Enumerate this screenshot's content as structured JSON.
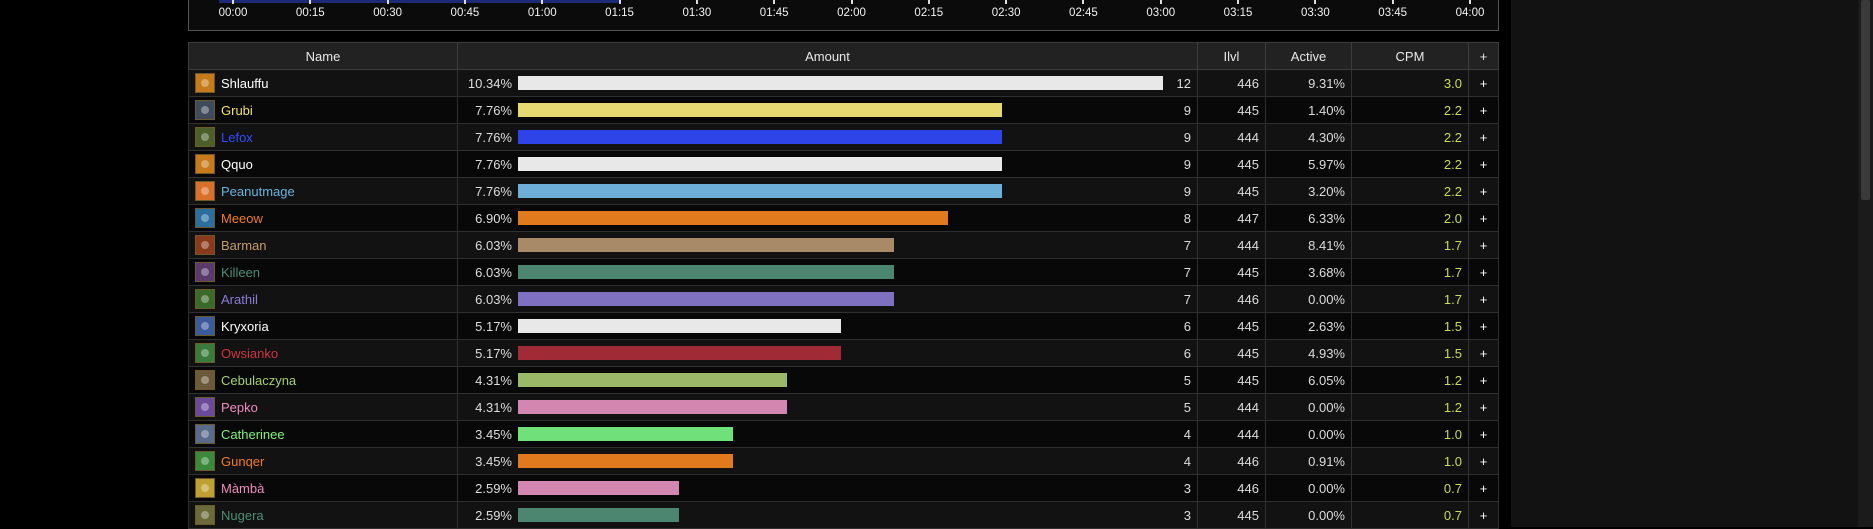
{
  "timeline": {
    "ticks": [
      "00:00",
      "00:15",
      "00:30",
      "00:45",
      "01:00",
      "01:15",
      "01:30",
      "01:45",
      "02:00",
      "02:15",
      "02:30",
      "02:45",
      "03:00",
      "03:15",
      "03:30",
      "03:45",
      "04:00"
    ]
  },
  "table": {
    "headers": {
      "name": "Name",
      "amount": "Amount",
      "ilvl": "Ilvl",
      "active": "Active",
      "cpm": "CPM",
      "plus": "+"
    },
    "rows": [
      {
        "name": "Shlauffu",
        "color": "#ffffff",
        "icon_color": "#c77a1a",
        "icon": "class-icon",
        "pct": "10.34%",
        "fraction": 1.0,
        "count": "12",
        "ilvl": "446",
        "active": "9.31%",
        "cpm": "3.0",
        "plus": "+",
        "bar_color": "#e8e8e8"
      },
      {
        "name": "Grubi",
        "color": "#f1e26a",
        "icon_color": "#3f4b5a",
        "icon": "class-icon",
        "pct": "7.76%",
        "fraction": 0.75,
        "count": "9",
        "ilvl": "445",
        "active": "1.40%",
        "cpm": "2.2",
        "plus": "+",
        "bar_color": "#e6db70"
      },
      {
        "name": "Lefox",
        "color": "#2e4fff",
        "icon_color": "#4a5f2a",
        "icon": "class-icon",
        "pct": "7.76%",
        "fraction": 0.75,
        "count": "9",
        "ilvl": "444",
        "active": "4.30%",
        "cpm": "2.2",
        "plus": "+",
        "bar_color": "#2f44e8"
      },
      {
        "name": "Qquo",
        "color": "#ffffff",
        "icon_color": "#c77a1a",
        "icon": "class-icon",
        "pct": "7.76%",
        "fraction": 0.75,
        "count": "9",
        "ilvl": "445",
        "active": "5.97%",
        "cpm": "2.2",
        "plus": "+",
        "bar_color": "#e8e8e8"
      },
      {
        "name": "Peanutmage",
        "color": "#69b4e0",
        "icon_color": "#d9702a",
        "icon": "class-icon",
        "pct": "7.76%",
        "fraction": 0.75,
        "count": "9",
        "ilvl": "445",
        "active": "3.20%",
        "cpm": "2.2",
        "plus": "+",
        "bar_color": "#6eafd9"
      },
      {
        "name": "Meeow",
        "color": "#f07d1f",
        "icon_color": "#2a6fa0",
        "icon": "class-icon",
        "pct": "6.90%",
        "fraction": 0.667,
        "count": "8",
        "ilvl": "447",
        "active": "6.33%",
        "cpm": "2.0",
        "plus": "+",
        "bar_color": "#e07a1d"
      },
      {
        "name": "Barman",
        "color": "#c79a6a",
        "icon_color": "#8a3a1a",
        "icon": "class-icon",
        "pct": "6.03%",
        "fraction": 0.583,
        "count": "7",
        "ilvl": "444",
        "active": "8.41%",
        "cpm": "1.7",
        "plus": "+",
        "bar_color": "#a88a68"
      },
      {
        "name": "Killeen",
        "color": "#4c8f74",
        "icon_color": "#5a3a6a",
        "icon": "class-icon",
        "pct": "6.03%",
        "fraction": 0.583,
        "count": "7",
        "ilvl": "445",
        "active": "3.68%",
        "cpm": "1.7",
        "plus": "+",
        "bar_color": "#4c8570"
      },
      {
        "name": "Arathil",
        "color": "#8a7dd6",
        "icon_color": "#3a6a2a",
        "icon": "class-icon",
        "pct": "6.03%",
        "fraction": 0.583,
        "count": "7",
        "ilvl": "446",
        "active": "0.00%",
        "cpm": "1.7",
        "plus": "+",
        "bar_color": "#8070c0"
      },
      {
        "name": "Kryxoria",
        "color": "#ffffff",
        "icon_color": "#3a5a9a",
        "icon": "class-icon",
        "pct": "5.17%",
        "fraction": 0.5,
        "count": "6",
        "ilvl": "445",
        "active": "2.63%",
        "cpm": "1.5",
        "plus": "+",
        "bar_color": "#e8e8e8"
      },
      {
        "name": "Owsianko",
        "color": "#d0343f",
        "icon_color": "#3a7a3a",
        "icon": "class-icon",
        "pct": "5.17%",
        "fraction": 0.5,
        "count": "6",
        "ilvl": "445",
        "active": "4.93%",
        "cpm": "1.5",
        "plus": "+",
        "bar_color": "#a02a35"
      },
      {
        "name": "Cebulaczyna",
        "color": "#a6cf6a",
        "icon_color": "#6a5a3a",
        "icon": "class-icon",
        "pct": "4.31%",
        "fraction": 0.417,
        "count": "5",
        "ilvl": "445",
        "active": "6.05%",
        "cpm": "1.2",
        "plus": "+",
        "bar_color": "#9ab868"
      },
      {
        "name": "Pepko",
        "color": "#f08cc0",
        "icon_color": "#6a4a9a",
        "icon": "class-icon",
        "pct": "4.31%",
        "fraction": 0.417,
        "count": "5",
        "ilvl": "444",
        "active": "0.00%",
        "cpm": "1.2",
        "plus": "+",
        "bar_color": "#d387b0"
      },
      {
        "name": "Catherinee",
        "color": "#7ef27a",
        "icon_color": "#5a6a8a",
        "icon": "class-icon",
        "pct": "3.45%",
        "fraction": 0.333,
        "count": "4",
        "ilvl": "444",
        "active": "0.00%",
        "cpm": "1.0",
        "plus": "+",
        "bar_color": "#6fe07a"
      },
      {
        "name": "Gunqer",
        "color": "#f07d1f",
        "icon_color": "#3a8a3a",
        "icon": "class-icon",
        "pct": "3.45%",
        "fraction": 0.333,
        "count": "4",
        "ilvl": "446",
        "active": "0.91%",
        "cpm": "1.0",
        "plus": "+",
        "bar_color": "#e07a1d"
      },
      {
        "name": "Màmbà",
        "color": "#f08cc0",
        "icon_color": "#c0a030",
        "icon": "class-icon",
        "pct": "2.59%",
        "fraction": 0.25,
        "count": "3",
        "ilvl": "446",
        "active": "0.00%",
        "cpm": "0.7",
        "plus": "+",
        "bar_color": "#d387b0"
      },
      {
        "name": "Nugera",
        "color": "#4c8f74",
        "icon_color": "#6a6a3a",
        "icon": "class-icon",
        "pct": "2.59%",
        "fraction": 0.25,
        "count": "3",
        "ilvl": "445",
        "active": "0.00%",
        "cpm": "0.7",
        "plus": "+",
        "bar_color": "#4c8570"
      }
    ]
  }
}
